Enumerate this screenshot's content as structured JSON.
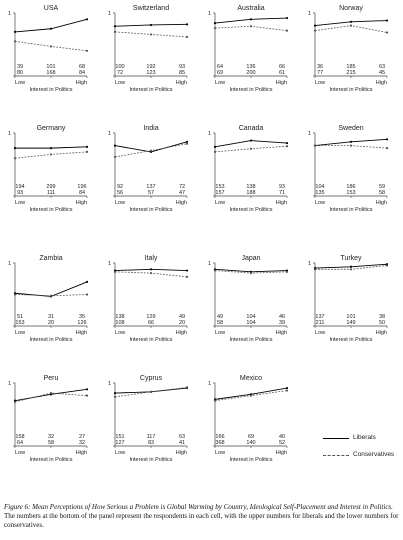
{
  "chart_data": [
    {
      "type": "line",
      "title": "USA",
      "x": [
        "Low",
        "",
        "High"
      ],
      "xlabel": "Interest in Politics",
      "ylim": [
        0,
        1
      ],
      "yticks": [
        0,
        1
      ],
      "series": [
        {
          "name": "Liberals",
          "values": [
            0.7,
            0.75,
            0.9
          ]
        },
        {
          "name": "Conservatives",
          "values": [
            0.55,
            0.47,
            0.4
          ]
        }
      ],
      "counts": {
        "liberals": [
          "39",
          "101",
          "68"
        ],
        "conservatives": [
          "80",
          "168",
          "84"
        ]
      }
    },
    {
      "type": "line",
      "title": "Switzerland",
      "x": [
        "Low",
        "",
        "High"
      ],
      "xlabel": "Interest in Politics",
      "ylim": [
        0,
        1
      ],
      "yticks": [
        0,
        1
      ],
      "series": [
        {
          "name": "Liberals",
          "values": [
            0.79,
            0.81,
            0.82
          ]
        },
        {
          "name": "Conservatives",
          "values": [
            0.7,
            0.66,
            0.62
          ]
        }
      ],
      "counts": {
        "liberals": [
          "100",
          "192",
          "93"
        ],
        "conservatives": [
          "72",
          "123",
          "85"
        ]
      }
    },
    {
      "type": "line",
      "title": "Australia",
      "x": [
        "Low",
        "",
        "High"
      ],
      "xlabel": "Interest in Politics",
      "ylim": [
        0,
        1
      ],
      "yticks": [
        0,
        1
      ],
      "series": [
        {
          "name": "Liberals",
          "values": [
            0.84,
            0.9,
            0.92
          ]
        },
        {
          "name": "Conservatives",
          "values": [
            0.76,
            0.79,
            0.72
          ]
        }
      ],
      "counts": {
        "liberals": [
          "64",
          "136",
          "66"
        ],
        "conservatives": [
          "69",
          "200",
          "61"
        ]
      }
    },
    {
      "type": "line",
      "title": "Norway",
      "x": [
        "Low",
        "",
        "High"
      ],
      "xlabel": "Interest in Politics",
      "ylim": [
        0,
        1
      ],
      "yticks": [
        0,
        1
      ],
      "series": [
        {
          "name": "Liberals",
          "values": [
            0.8,
            0.86,
            0.88
          ]
        },
        {
          "name": "Conservatives",
          "values": [
            0.72,
            0.8,
            0.69
          ]
        }
      ],
      "counts": {
        "liberals": [
          "36",
          "185",
          "63"
        ],
        "conservatives": [
          "77",
          "215",
          "45"
        ]
      }
    },
    {
      "type": "line",
      "title": "Germany",
      "x": [
        "Low",
        "",
        "High"
      ],
      "xlabel": "Interest in Politics",
      "ylim": [
        0,
        1
      ],
      "yticks": [
        0,
        1
      ],
      "series": [
        {
          "name": "Liberals",
          "values": [
            0.76,
            0.76,
            0.78
          ]
        },
        {
          "name": "Conservatives",
          "values": [
            0.6,
            0.66,
            0.7
          ]
        }
      ],
      "counts": {
        "liberals": [
          "194",
          "299",
          "196"
        ],
        "conservatives": [
          "93",
          "111",
          "84"
        ]
      }
    },
    {
      "type": "line",
      "title": "India",
      "x": [
        "Low",
        "",
        "High"
      ],
      "xlabel": "Interest in Politics",
      "ylim": [
        0,
        1
      ],
      "yticks": [
        0,
        1
      ],
      "series": [
        {
          "name": "Liberals",
          "values": [
            0.8,
            0.7,
            0.86
          ]
        },
        {
          "name": "Conservatives",
          "values": [
            0.62,
            0.72,
            0.83
          ]
        }
      ],
      "counts": {
        "liberals": [
          "92",
          "137",
          "72"
        ],
        "conservatives": [
          "56",
          "57",
          "47"
        ]
      }
    },
    {
      "type": "line",
      "title": "Canada",
      "x": [
        "Low",
        "",
        "High"
      ],
      "xlabel": "Interest in Politics",
      "ylim": [
        0,
        1
      ],
      "yticks": [
        0,
        1
      ],
      "series": [
        {
          "name": "Liberals",
          "values": [
            0.78,
            0.88,
            0.84
          ]
        },
        {
          "name": "Conservatives",
          "values": [
            0.7,
            0.75,
            0.79
          ]
        }
      ],
      "counts": {
        "liberals": [
          "153",
          "138",
          "93"
        ],
        "conservatives": [
          "157",
          "188",
          "71"
        ]
      }
    },
    {
      "type": "line",
      "title": "Sweden",
      "x": [
        "Low",
        "",
        "High"
      ],
      "xlabel": "Interest in Politics",
      "ylim": [
        0,
        1
      ],
      "yticks": [
        0,
        1
      ],
      "series": [
        {
          "name": "Liberals",
          "values": [
            0.8,
            0.86,
            0.9
          ]
        },
        {
          "name": "Conservatives",
          "values": [
            0.8,
            0.8,
            0.76
          ]
        }
      ],
      "counts": {
        "liberals": [
          "104",
          "186",
          "59"
        ],
        "conservatives": [
          "135",
          "153",
          "58"
        ]
      }
    },
    {
      "type": "line",
      "title": "Zambia",
      "x": [
        "Low",
        "",
        "High"
      ],
      "xlabel": "Interest in Politics",
      "ylim": [
        0,
        1
      ],
      "yticks": [
        0,
        1
      ],
      "series": [
        {
          "name": "Liberals",
          "values": [
            0.52,
            0.47,
            0.7
          ]
        },
        {
          "name": "Conservatives",
          "values": [
            0.5,
            0.48,
            0.5
          ]
        }
      ],
      "counts": {
        "liberals": [
          "51",
          "31",
          "35"
        ],
        "conservatives": [
          "153",
          "20",
          "126"
        ]
      }
    },
    {
      "type": "line",
      "title": "Italy",
      "x": [
        "Low",
        "",
        "High"
      ],
      "xlabel": "Interest in Politics",
      "ylim": [
        0,
        1
      ],
      "yticks": [
        0,
        1
      ],
      "series": [
        {
          "name": "Liberals",
          "values": [
            0.88,
            0.9,
            0.88
          ]
        },
        {
          "name": "Conservatives",
          "values": [
            0.86,
            0.84,
            0.78
          ]
        }
      ],
      "counts": {
        "liberals": [
          "138",
          "129",
          "49"
        ],
        "conservatives": [
          "108",
          "66",
          "20"
        ]
      }
    },
    {
      "type": "line",
      "title": "Japan",
      "x": [
        "Low",
        "",
        "High"
      ],
      "xlabel": "Interest in Politics",
      "ylim": [
        0,
        1
      ],
      "yticks": [
        0,
        1
      ],
      "series": [
        {
          "name": "Liberals",
          "values": [
            0.9,
            0.86,
            0.88
          ]
        },
        {
          "name": "Conservatives",
          "values": [
            0.88,
            0.84,
            0.86
          ]
        }
      ],
      "counts": {
        "liberals": [
          "49",
          "104",
          "46"
        ],
        "conservatives": [
          "58",
          "104",
          "39"
        ]
      }
    },
    {
      "type": "line",
      "title": "Turkey",
      "x": [
        "Low",
        "",
        "High"
      ],
      "xlabel": "Interest in Politics",
      "ylim": [
        0,
        1
      ],
      "yticks": [
        0,
        1
      ],
      "series": [
        {
          "name": "Liberals",
          "values": [
            0.92,
            0.94,
            0.98
          ]
        },
        {
          "name": "Conservatives",
          "values": [
            0.9,
            0.9,
            0.96
          ]
        }
      ],
      "counts": {
        "liberals": [
          "137",
          "101",
          "38"
        ],
        "conservatives": [
          "211",
          "149",
          "50"
        ]
      }
    },
    {
      "type": "line",
      "title": "Peru",
      "x": [
        "Low",
        "",
        "High"
      ],
      "xlabel": "Interest in Politics",
      "ylim": [
        0,
        1
      ],
      "yticks": [
        0,
        1
      ],
      "series": [
        {
          "name": "Liberals",
          "values": [
            0.72,
            0.82,
            0.9
          ]
        },
        {
          "name": "Conservatives",
          "values": [
            0.7,
            0.84,
            0.8
          ]
        }
      ],
      "counts": {
        "liberals": [
          "158",
          "32",
          "27"
        ],
        "conservatives": [
          "64",
          "58",
          "32"
        ]
      }
    },
    {
      "type": "line",
      "title": "Cyprus",
      "x": [
        "Low",
        "",
        "High"
      ],
      "xlabel": "Interest in Politics",
      "ylim": [
        0,
        1
      ],
      "yticks": [
        0,
        1
      ],
      "series": [
        {
          "name": "Liberals",
          "values": [
            0.84,
            0.86,
            0.92
          ]
        },
        {
          "name": "Conservatives",
          "values": [
            0.78,
            0.86,
            0.93
          ]
        }
      ],
      "counts": {
        "liberals": [
          "151",
          "117",
          "63"
        ],
        "conservatives": [
          "127",
          "83",
          "41"
        ]
      }
    },
    {
      "type": "line",
      "title": "Mexico",
      "x": [
        "Low",
        "",
        "High"
      ],
      "xlabel": "Interest in Politics",
      "ylim": [
        0,
        1
      ],
      "yticks": [
        0,
        1
      ],
      "series": [
        {
          "name": "Liberals",
          "values": [
            0.74,
            0.82,
            0.92
          ]
        },
        {
          "name": "Conservatives",
          "values": [
            0.72,
            0.8,
            0.88
          ]
        }
      ],
      "counts": {
        "liberals": [
          "166",
          "69",
          "40"
        ],
        "conservatives": [
          "368",
          "140",
          "52"
        ]
      }
    }
  ],
  "legend": {
    "placement": "bottom-right",
    "liberals": "Liberals",
    "conservatives": "Conservatives"
  },
  "caption": {
    "figure_label": "Figure 6: Mean Perceptions of How Serious a Problem is Global Warming by Country, Ideological Self-Placement and Interest in Politics.",
    "text": " The numbers at the bottom of the panel represent the respondents in each cell, with the upper numbers for liberals and the lower numbers for conservatives."
  },
  "colors": {
    "liberals": "#000000",
    "conservatives": "#555555"
  }
}
